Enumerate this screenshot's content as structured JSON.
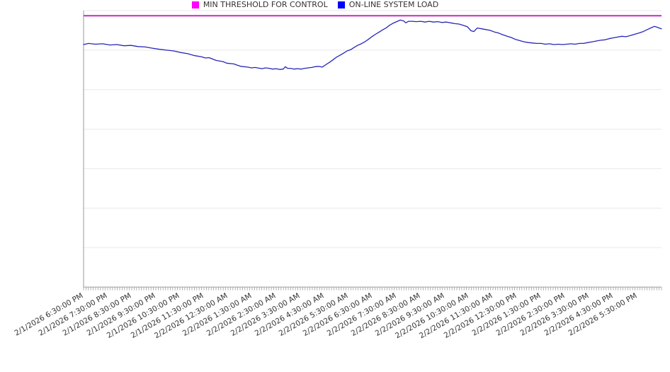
{
  "chart_data": {
    "type": "line",
    "title": "",
    "x_axis": {
      "tick_labels": [
        "2/1/2026 6:30:00 PM",
        "2/1/2026 7:30:00 PM",
        "2/1/2026 8:30:00 PM",
        "2/1/2026 9:30:00 PM",
        "2/1/2026 10:30:00 PM",
        "2/1/2026 11:30:00 PM",
        "2/2/2026 12:30:00 AM",
        "2/2/2026 1:30:00 AM",
        "2/2/2026 2:30:00 AM",
        "2/2/2026 3:30:00 AM",
        "2/2/2026 4:30:00 AM",
        "2/2/2026 5:30:00 AM",
        "2/2/2026 6:30:00 AM",
        "2/2/2026 7:30:00 AM",
        "2/2/2026 8:30:00 AM",
        "2/2/2026 9:30:00 AM",
        "2/2/2026 10:30:00 AM",
        "2/2/2026 11:30:00 AM",
        "2/2/2026 12:30:00 PM",
        "2/2/2026 1:30:00 PM",
        "2/2/2026 2:30:00 PM",
        "2/2/2026 3:30:00 PM",
        "2/2/2026 4:30:00 PM",
        "2/2/2026 5:30:00 PM"
      ],
      "label_rotation_deg": -30,
      "minor_tick_intervals": 240,
      "span_hours": 24
    },
    "y_axis": {
      "tick_labels_visible": false,
      "gridline_divisions": 7,
      "ylim": [
        0,
        7
      ],
      "note": "no numeric y tick labels shown; series values estimated in gridline units"
    },
    "grid": true,
    "legend_position": "bottom-center",
    "colors": {
      "threshold_line": "#c32ac3",
      "load_line": "#2626b8",
      "legend_threshold": "#ff00ff",
      "legend_load": "#0000ff",
      "grid_line": "#e9e9e9",
      "axis_line": "#9a9a9a",
      "label_text": "#333333",
      "background": "#ffffff"
    },
    "series": [
      {
        "name": "MIN THRESHOLD FOR CONTROL",
        "type": "constant",
        "value": 6.87,
        "color": "#c32ac3",
        "legend_color": "#ff00ff"
      },
      {
        "name": "ON-LINE SYSTEM LOAD",
        "type": "line",
        "color": "#2626b8",
        "legend_color": "#0000ff",
        "points": [
          [
            0.0,
            6.14
          ],
          [
            0.21,
            6.17
          ],
          [
            0.5,
            6.15
          ],
          [
            0.79,
            6.16
          ],
          [
            1.09,
            6.13
          ],
          [
            1.38,
            6.14
          ],
          [
            1.68,
            6.11
          ],
          [
            1.97,
            6.12
          ],
          [
            2.26,
            6.09
          ],
          [
            2.56,
            6.08
          ],
          [
            2.85,
            6.05
          ],
          [
            3.15,
            6.02
          ],
          [
            3.44,
            6.0
          ],
          [
            3.74,
            5.98
          ],
          [
            4.03,
            5.94
          ],
          [
            4.32,
            5.91
          ],
          [
            4.62,
            5.86
          ],
          [
            4.91,
            5.83
          ],
          [
            5.06,
            5.8
          ],
          [
            5.21,
            5.81
          ],
          [
            5.5,
            5.74
          ],
          [
            5.79,
            5.71
          ],
          [
            5.94,
            5.67
          ],
          [
            6.24,
            5.65
          ],
          [
            6.38,
            5.62
          ],
          [
            6.53,
            5.59
          ],
          [
            6.82,
            5.57
          ],
          [
            6.97,
            5.55
          ],
          [
            7.12,
            5.56
          ],
          [
            7.41,
            5.53
          ],
          [
            7.56,
            5.55
          ],
          [
            7.71,
            5.54
          ],
          [
            7.85,
            5.52
          ],
          [
            8.0,
            5.53
          ],
          [
            8.15,
            5.51
          ],
          [
            8.29,
            5.52
          ],
          [
            8.38,
            5.58
          ],
          [
            8.47,
            5.54
          ],
          [
            8.59,
            5.54
          ],
          [
            8.74,
            5.52
          ],
          [
            8.88,
            5.53
          ],
          [
            9.03,
            5.52
          ],
          [
            9.18,
            5.54
          ],
          [
            9.32,
            5.55
          ],
          [
            9.47,
            5.56
          ],
          [
            9.62,
            5.58
          ],
          [
            9.76,
            5.59
          ],
          [
            9.91,
            5.57
          ],
          [
            10.06,
            5.63
          ],
          [
            10.21,
            5.69
          ],
          [
            10.35,
            5.75
          ],
          [
            10.5,
            5.82
          ],
          [
            10.65,
            5.87
          ],
          [
            10.79,
            5.92
          ],
          [
            10.94,
            5.98
          ],
          [
            11.09,
            6.01
          ],
          [
            11.24,
            6.07
          ],
          [
            11.38,
            6.12
          ],
          [
            11.53,
            6.16
          ],
          [
            11.68,
            6.21
          ],
          [
            11.82,
            6.27
          ],
          [
            11.97,
            6.34
          ],
          [
            12.12,
            6.4
          ],
          [
            12.26,
            6.45
          ],
          [
            12.41,
            6.51
          ],
          [
            12.56,
            6.56
          ],
          [
            12.71,
            6.63
          ],
          [
            12.85,
            6.68
          ],
          [
            13.0,
            6.72
          ],
          [
            13.15,
            6.76
          ],
          [
            13.29,
            6.74
          ],
          [
            13.38,
            6.69
          ],
          [
            13.5,
            6.73
          ],
          [
            13.65,
            6.73
          ],
          [
            13.82,
            6.72
          ],
          [
            14.0,
            6.73
          ],
          [
            14.18,
            6.71
          ],
          [
            14.35,
            6.73
          ],
          [
            14.53,
            6.71
          ],
          [
            14.71,
            6.72
          ],
          [
            14.88,
            6.7
          ],
          [
            15.06,
            6.71
          ],
          [
            15.24,
            6.69
          ],
          [
            15.41,
            6.67
          ],
          [
            15.59,
            6.66
          ],
          [
            15.76,
            6.63
          ],
          [
            15.94,
            6.59
          ],
          [
            16.09,
            6.49
          ],
          [
            16.21,
            6.47
          ],
          [
            16.35,
            6.56
          ],
          [
            16.53,
            6.54
          ],
          [
            16.71,
            6.52
          ],
          [
            16.88,
            6.5
          ],
          [
            17.06,
            6.46
          ],
          [
            17.24,
            6.43
          ],
          [
            17.41,
            6.39
          ],
          [
            17.59,
            6.35
          ],
          [
            17.76,
            6.32
          ],
          [
            17.94,
            6.27
          ],
          [
            18.12,
            6.24
          ],
          [
            18.29,
            6.21
          ],
          [
            18.47,
            6.19
          ],
          [
            18.65,
            6.18
          ],
          [
            18.82,
            6.17
          ],
          [
            19.0,
            6.17
          ],
          [
            19.18,
            6.15
          ],
          [
            19.35,
            6.16
          ],
          [
            19.53,
            6.14
          ],
          [
            19.71,
            6.15
          ],
          [
            19.88,
            6.14
          ],
          [
            20.06,
            6.15
          ],
          [
            20.24,
            6.16
          ],
          [
            20.41,
            6.15
          ],
          [
            20.59,
            6.17
          ],
          [
            20.76,
            6.17
          ],
          [
            20.94,
            6.19
          ],
          [
            21.12,
            6.21
          ],
          [
            21.29,
            6.23
          ],
          [
            21.47,
            6.25
          ],
          [
            21.65,
            6.26
          ],
          [
            21.82,
            6.29
          ],
          [
            22.0,
            6.31
          ],
          [
            22.18,
            6.33
          ],
          [
            22.35,
            6.35
          ],
          [
            22.53,
            6.34
          ],
          [
            22.71,
            6.37
          ],
          [
            22.88,
            6.4
          ],
          [
            23.06,
            6.43
          ],
          [
            23.24,
            6.47
          ],
          [
            23.41,
            6.52
          ],
          [
            23.59,
            6.57
          ],
          [
            23.71,
            6.6
          ],
          [
            23.82,
            6.58
          ],
          [
            23.94,
            6.55
          ],
          [
            24.0,
            6.54
          ]
        ]
      }
    ]
  }
}
